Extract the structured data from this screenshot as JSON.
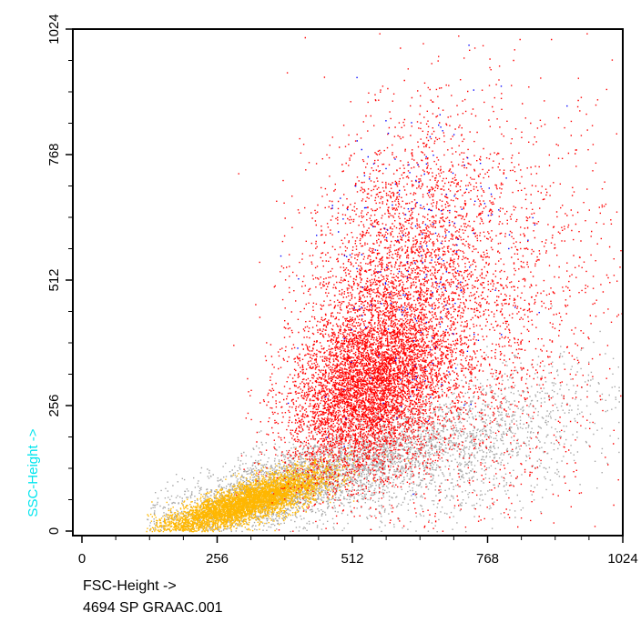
{
  "chart_data": {
    "type": "scatter",
    "title": "",
    "xlabel": "FSC-Height ->",
    "ylabel": "SSC-Height ->",
    "xlim": [
      0,
      1024
    ],
    "ylim": [
      0,
      1024
    ],
    "x_ticks": [
      0,
      256,
      512,
      768,
      1024
    ],
    "y_ticks": [
      0,
      256,
      512,
      768,
      1024
    ],
    "x_tick_labels": [
      "0",
      "256",
      "512",
      "768",
      "1024"
    ],
    "y_tick_labels": [
      "0",
      "256",
      "512",
      "768",
      "1024"
    ],
    "grid": false,
    "series": [
      {
        "color": "#a6a6a6",
        "count": 5000,
        "clusters": [
          {
            "cx": 400,
            "cy": 95,
            "sx": 150,
            "sy": 40,
            "w": 0.7
          },
          {
            "cx": 720,
            "cy": 170,
            "sx": 140,
            "sy": 70,
            "w": 0.3
          }
        ]
      },
      {
        "color": "#ffb700",
        "count": 5000,
        "clusters": [
          {
            "cx": 270,
            "cy": 45,
            "sx": 70,
            "sy": 18,
            "w": 0.6
          },
          {
            "cx": 360,
            "cy": 75,
            "sx": 60,
            "sy": 22,
            "w": 0.4
          }
        ]
      },
      {
        "color": "#ff0000",
        "count": 11000,
        "clusters": [
          {
            "cx": 540,
            "cy": 290,
            "sx": 75,
            "sy": 85,
            "w": 0.55
          },
          {
            "cx": 600,
            "cy": 500,
            "sx": 90,
            "sy": 160,
            "w": 0.3
          },
          {
            "cx": 780,
            "cy": 420,
            "sx": 120,
            "sy": 220,
            "w": 0.15
          }
        ]
      },
      {
        "color": "#0000ff",
        "count": 220,
        "clusters": [
          {
            "cx": 620,
            "cy": 560,
            "sx": 90,
            "sy": 170,
            "w": 1.0
          }
        ]
      }
    ]
  },
  "caption": {
    "axis_label": "FSC-Height ->",
    "file_label": "4694 SP GRAAC.001"
  }
}
